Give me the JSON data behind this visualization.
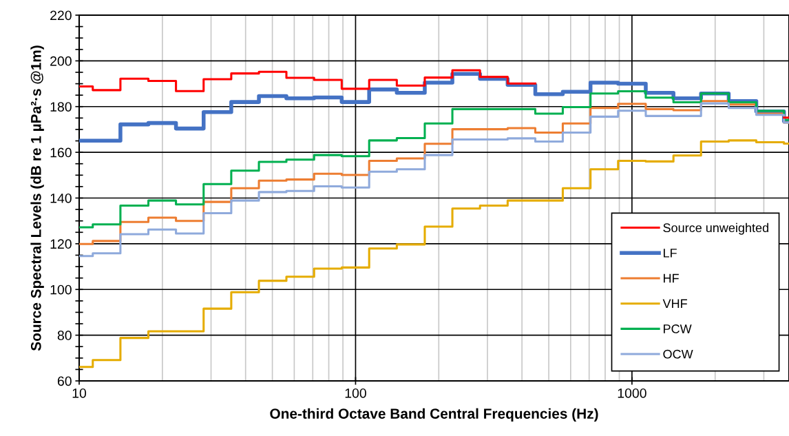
{
  "chart_data": {
    "type": "step",
    "xlabel": "One-third Octave Band Central Frequencies (Hz)",
    "ylabel": "Source Spectral Levels (dB re 1 µPa²·s @1m)",
    "x": [
      10,
      11.2,
      14.1,
      17.8,
      22.4,
      28.2,
      35.5,
      44.7,
      56.2,
      70.8,
      89.1,
      112,
      141,
      178,
      224,
      282,
      355,
      447,
      562,
      708,
      891,
      1122,
      1413,
      1778,
      2239,
      2818,
      3548,
      3700
    ],
    "log": "x",
    "xlim": [
      10,
      3700
    ],
    "xticks": [
      10,
      100,
      1000
    ],
    "ylim": [
      60,
      220
    ],
    "yticks": [
      60,
      80,
      100,
      120,
      140,
      160,
      180,
      200,
      220
    ],
    "grid": true,
    "legend": "bottom right",
    "line_style": "solid",
    "marker": "none",
    "series": [
      {
        "name": "Source unweighted",
        "color": "#ff0000",
        "values": [
          188.8,
          187.2,
          192.2,
          191.2,
          186.8,
          192,
          194.5,
          195.2,
          192.6,
          191.7,
          187.8,
          191.7,
          189.2,
          192.7,
          195.9,
          193,
          190.1,
          null,
          null,
          null,
          null,
          null,
          null,
          null,
          null,
          null,
          175.2,
          175.2
        ]
      },
      {
        "name": "LF",
        "color": "#4472c4",
        "values": [
          165.1,
          165.1,
          172.2,
          172.8,
          170.4,
          177.6,
          182,
          184.6,
          183.6,
          184,
          182,
          187.5,
          186,
          190.5,
          194.3,
          192.1,
          189.5,
          185.4,
          186.5,
          190.5,
          190,
          186,
          183.6,
          185.7,
          182.4,
          177.9,
          173.6,
          173.6
        ]
      },
      {
        "name": "HF",
        "color": "#ed7d31",
        "values": [
          119.9,
          121.2,
          129.5,
          131.4,
          130,
          138.3,
          144.3,
          147.6,
          148.1,
          150.6,
          150.1,
          156.3,
          157.3,
          163.7,
          170.1,
          170.1,
          170.6,
          168.6,
          172.6,
          179.4,
          181.2,
          178.9,
          178.4,
          182.4,
          180.9,
          176.9,
          173,
          173
        ]
      },
      {
        "name": "VHF",
        "color": "#e5ac00",
        "values": [
          66.1,
          69.1,
          78.8,
          81.7,
          81.7,
          91.6,
          98.8,
          103.8,
          105.6,
          109.1,
          109.6,
          117.9,
          119.7,
          127.5,
          135.4,
          136.7,
          138.9,
          138.9,
          144.3,
          152.6,
          156.3,
          156,
          158.6,
          164.7,
          165.2,
          164.4,
          163.8,
          163.8
        ]
      },
      {
        "name": "PCW",
        "color": "#00b050",
        "values": [
          127.2,
          128.5,
          136.7,
          138.9,
          137.2,
          146.1,
          152,
          155.8,
          156.8,
          158.8,
          158.3,
          165.2,
          166.2,
          172.6,
          178.9,
          178.9,
          178.9,
          176.9,
          179.8,
          185.7,
          186.7,
          183.9,
          181.9,
          185.7,
          181.9,
          178.1,
          174.2,
          174.2
        ]
      },
      {
        "name": "OCW",
        "color": "#8faadc",
        "values": [
          114.6,
          115.8,
          124.2,
          126.2,
          124.5,
          133.4,
          138.9,
          142.6,
          143.1,
          145.1,
          144.6,
          151.5,
          152.6,
          158.8,
          165.6,
          165.6,
          166.1,
          164.7,
          168.6,
          175.6,
          178.2,
          175.9,
          175.9,
          181.4,
          179.4,
          176.4,
          173,
          173
        ]
      }
    ]
  }
}
